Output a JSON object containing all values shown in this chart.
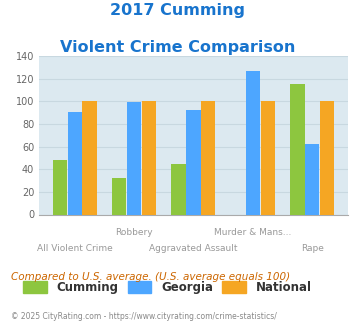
{
  "title_line1": "2017 Cumming",
  "title_line2": "Violent Crime Comparison",
  "title_color": "#1874cd",
  "cumming": [
    48,
    32,
    45,
    0,
    115
  ],
  "georgia": [
    91,
    99,
    92,
    127,
    62
  ],
  "national": [
    100,
    100,
    100,
    100,
    100
  ],
  "cumming_color": "#8dc63f",
  "georgia_color": "#4da6ff",
  "national_color": "#f5a623",
  "ylim": [
    0,
    140
  ],
  "yticks": [
    0,
    20,
    40,
    60,
    80,
    100,
    120,
    140
  ],
  "grid_color": "#c8d8e0",
  "plot_bg": "#dce9f0",
  "group_labels_upper": [
    "",
    "Robbery",
    "",
    "Murder & Mans...",
    ""
  ],
  "group_labels_lower": [
    "All Violent Crime",
    "",
    "Aggravated Assault",
    "",
    "Rape"
  ],
  "footnote": "Compared to U.S. average. (U.S. average equals 100)",
  "footnote_color": "#cc6600",
  "copyright": "© 2025 CityRating.com - https://www.cityrating.com/crime-statistics/",
  "copyright_color": "#888888",
  "legend_labels": [
    "Cumming",
    "Georgia",
    "National"
  ],
  "n_groups": 5
}
